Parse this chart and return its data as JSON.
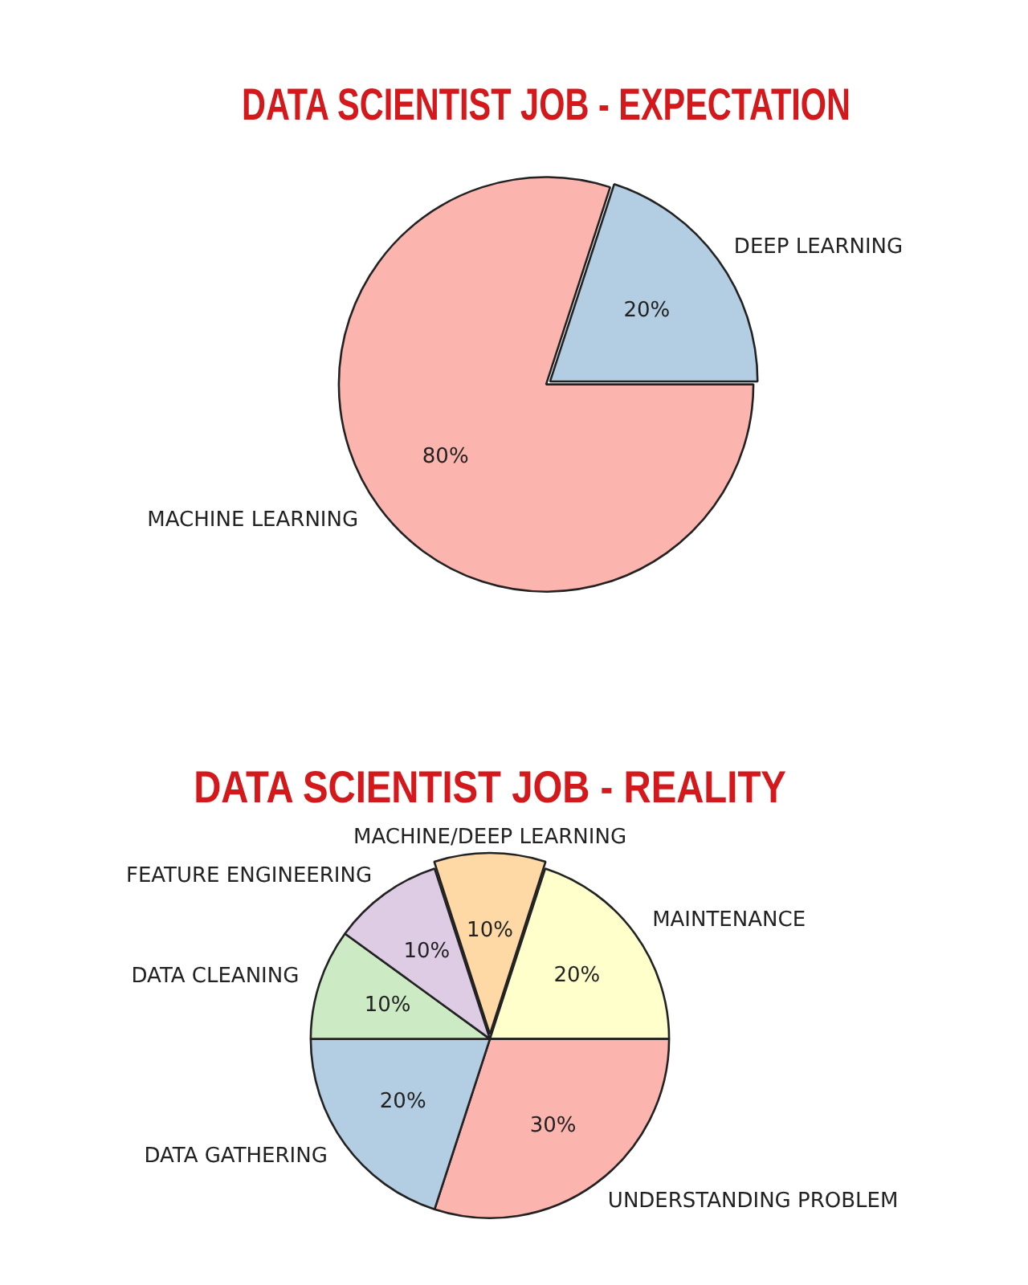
{
  "chart_data": [
    {
      "type": "pie",
      "title": "DATA SCIENTIST JOB - EXPECTATION",
      "categories": [
        "DEEP LEARNING",
        "MACHINE LEARNING"
      ],
      "values": [
        20,
        80
      ],
      "colors": [
        "#b3cde3",
        "#fbb4ae"
      ],
      "value_labels": [
        "20%",
        "80%"
      ],
      "legend": false
    },
    {
      "type": "pie",
      "title": "DATA SCIENTIST JOB - REALITY",
      "categories": [
        "MACHINE/DEEP LEARNING",
        "MAINTENANCE",
        "UNDERSTANDING PROBLEM",
        "DATA GATHERING",
        "DATA CLEANING",
        "FEATURE ENGINEERING"
      ],
      "values": [
        10,
        20,
        30,
        20,
        10,
        10
      ],
      "colors": [
        "#fed9a6",
        "#ffffcc",
        "#fbb4ae",
        "#b3cde3",
        "#ccebc5",
        "#decbe4"
      ],
      "value_labels": [
        "10%",
        "20%",
        "30%",
        "20%",
        "10%",
        "10%"
      ],
      "legend": false
    }
  ]
}
